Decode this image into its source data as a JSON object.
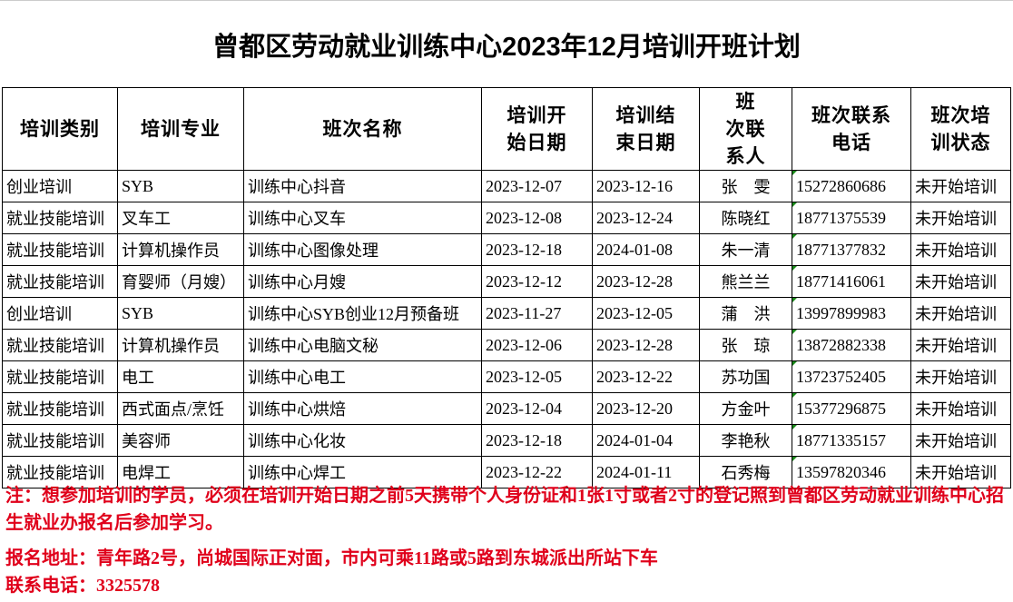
{
  "title": "曾都区劳动就业训练中心2023年12月培训开班计划",
  "headers": [
    "培训类别",
    "培训专业",
    "班次名称",
    "培训开始日期",
    "培训结束日期",
    "班　次联系人",
    "班次联系电话",
    "班次培训状态"
  ],
  "rows": [
    [
      "创业培训",
      "SYB",
      "训练中心抖音",
      "2023-12-07",
      "2023-12-16",
      "张　雯",
      "15272860686",
      "未开始培训"
    ],
    [
      "就业技能培训",
      "叉车工",
      "训练中心叉车",
      "2023-12-08",
      "2023-12-24",
      "陈晓红",
      "18771375539",
      "未开始培训"
    ],
    [
      "就业技能培训",
      "计算机操作员",
      "训练中心图像处理",
      "2023-12-18",
      "2024-01-08",
      "朱一清",
      "18771377832",
      "未开始培训"
    ],
    [
      "就业技能培训",
      "育婴师（月嫂）",
      "训练中心月嫂",
      "2023-12-12",
      "2023-12-28",
      "熊兰兰",
      "18771416061",
      "未开始培训"
    ],
    [
      "创业培训",
      "SYB",
      "训练中心SYB创业12月预备班",
      "2023-11-27",
      "2023-12-05",
      "蒲　洪",
      "13997899983",
      "未开始培训"
    ],
    [
      "就业技能培训",
      "计算机操作员",
      "训练中心电脑文秘",
      "2023-12-06",
      "2023-12-28",
      "张　琼",
      "13872882338",
      "未开始培训"
    ],
    [
      "就业技能培训",
      "电工",
      "训练中心电工",
      "2023-12-05",
      "2023-12-22",
      "苏功国",
      "13723752405",
      "未开始培训"
    ],
    [
      "就业技能培训",
      "西式面点/烹饪",
      "训练中心烘焙",
      "2023-12-04",
      "2023-12-20",
      "方金叶",
      "15377296875",
      "未开始培训"
    ],
    [
      "就业技能培训",
      "美容师",
      "训练中心化妆",
      "2023-12-18",
      "2024-01-04",
      "李艳秋",
      "18771335157",
      "未开始培训"
    ],
    [
      "就业技能培训",
      "电焊工",
      "训练中心焊工",
      "2023-12-22",
      "2024-01-11",
      "石秀梅",
      "13597820346",
      "未开始培训"
    ]
  ],
  "notes": {
    "note": "注：想参加培训的学员，必须在培训开始日期之前5天携带个人身份证和1张1寸或者2寸的登记照到曾都区劳动就业训练中心招生就业办报名后参加学习。",
    "address": "报名地址：青年路2号，尚城国际正对面，市内可乘11路或5路到东城派出所站下车",
    "phone": "联系电话：3325578"
  },
  "colors": {
    "note_text": "#e0001b",
    "cell_marker": "#1a8a1a"
  }
}
